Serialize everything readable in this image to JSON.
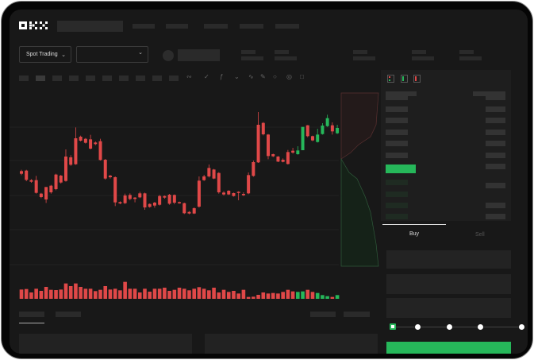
{
  "brand": {
    "logo_text": "OKX"
  },
  "market_bar": {
    "mode_label": "Spot Trading",
    "mode_chevron": "chevron-down-icon",
    "pair_chevron": "chevron-down-icon"
  },
  "chart_toolbar": {
    "icons": [
      "line-icon",
      "pencil-icon",
      "lock-icon",
      "target-icon",
      "expand-icon"
    ]
  },
  "colors": {
    "up": "#26b75a",
    "down": "#e04848",
    "background": "#181818",
    "panel": "#1e1e1e"
  },
  "order_form": {
    "tabs": [
      {
        "label": "Buy",
        "active": true
      },
      {
        "label": "Sell",
        "active": false
      }
    ],
    "slider_percent": 0
  },
  "chart_data": {
    "type": "candlestick",
    "candles": [
      [
        250,
        240,
        255,
        235
      ],
      [
        252,
        217,
        255,
        212
      ],
      [
        216,
        210,
        220,
        206
      ],
      [
        216,
        168,
        232,
        165
      ],
      [
        165,
        152,
        168,
        148
      ],
      [
        190,
        143,
        190,
        130
      ],
      [
        195,
        170,
        198,
        165
      ],
      [
        237,
        182,
        240,
        178
      ],
      [
        233,
        207,
        236,
        203
      ],
      [
        305,
        213,
        332,
        210
      ],
      [
        302,
        274,
        310,
        270
      ],
      [
        374,
        276,
        415,
        274
      ],
      [
        380,
        365,
        384,
        362
      ],
      [
        372,
        357,
        375,
        354
      ],
      [
        370,
        335,
        387,
        332
      ],
      [
        358,
        352,
        362,
        348
      ],
      [
        363,
        292,
        372,
        290
      ],
      [
        293,
        222,
        296,
        218
      ],
      [
        233,
        227,
        236,
        222
      ],
      [
        227,
        132,
        230,
        118
      ],
      [
        133,
        128,
        136,
        125
      ],
      [
        158,
        129,
        165,
        126
      ],
      [
        160,
        145,
        166,
        140
      ],
      [
        150,
        145,
        152,
        132
      ],
      [
        166,
        151,
        172,
        148
      ],
      [
        166,
        113,
        169,
        104
      ],
      [
        126,
        115,
        128,
        112
      ],
      [
        131,
        120,
        134,
        112
      ],
      [
        156,
        123,
        160,
        120
      ],
      [
        156,
        150,
        158,
        146
      ],
      [
        161,
        127,
        164,
        123
      ],
      [
        160,
        131,
        162,
        125
      ],
      [
        133,
        130,
        135,
        127
      ],
      [
        129,
        91,
        131,
        88
      ],
      [
        96,
        90,
        99,
        87
      ],
      [
        110,
        90,
        113,
        88
      ],
      [
        214,
        116,
        230,
        112
      ],
      [
        230,
        216,
        236,
        213
      ],
      [
        262,
        230,
        275,
        226
      ],
      [
        256,
        222,
        258,
        220
      ],
      [
        243,
        170,
        246,
        165
      ],
      [
        169,
        162,
        174,
        158
      ],
      [
        176,
        162,
        178,
        160
      ],
      [
        167,
        156,
        169,
        154
      ],
      [
        172,
        168,
        174,
        140
      ],
      [
        164,
        159,
        170,
        156
      ],
      [
        235,
        166,
        245,
        163
      ],
      [
        284,
        232,
        290,
        229
      ],
      [
        425,
        283,
        473,
        281
      ],
      [
        432,
        389,
        435,
        385
      ],
      [
        388,
        307,
        390,
        295
      ],
      [
        314,
        306,
        316,
        303
      ],
      [
        305,
        286,
        307,
        284
      ],
      [
        293,
        285,
        298,
        283
      ],
      [
        322,
        277,
        330,
        275
      ],
      [
        327,
        320,
        338,
        316
      ],
      [
        314,
        328,
        344,
        312
      ],
      [
        329,
        417,
        344,
        414
      ],
      [
        423,
        382,
        424,
        378
      ],
      [
        382,
        366,
        384,
        363
      ],
      [
        360,
        388,
        410,
        358
      ],
      [
        390,
        422,
        431,
        388
      ],
      [
        420,
        450,
        463,
        417
      ],
      [
        423,
        400,
        434,
        388
      ],
      [
        393,
        413,
        425,
        390
      ]
    ],
    "volume": [
      35,
      37,
      24,
      38,
      30,
      45,
      34,
      33,
      35,
      58,
      48,
      58,
      45,
      38,
      38,
      29,
      34,
      48,
      35,
      38,
      32,
      64,
      38,
      38,
      24,
      38,
      27,
      38,
      38,
      42,
      30,
      34,
      42,
      38,
      32,
      38,
      44,
      38,
      32,
      42,
      24,
      34,
      26,
      30,
      20,
      34,
      7,
      8,
      15,
      24,
      20,
      22,
      20,
      26,
      34,
      28,
      26,
      28,
      34,
      26,
      22,
      14,
      10,
      7,
      14
    ],
    "xlabel": "",
    "ylabel": ""
  }
}
